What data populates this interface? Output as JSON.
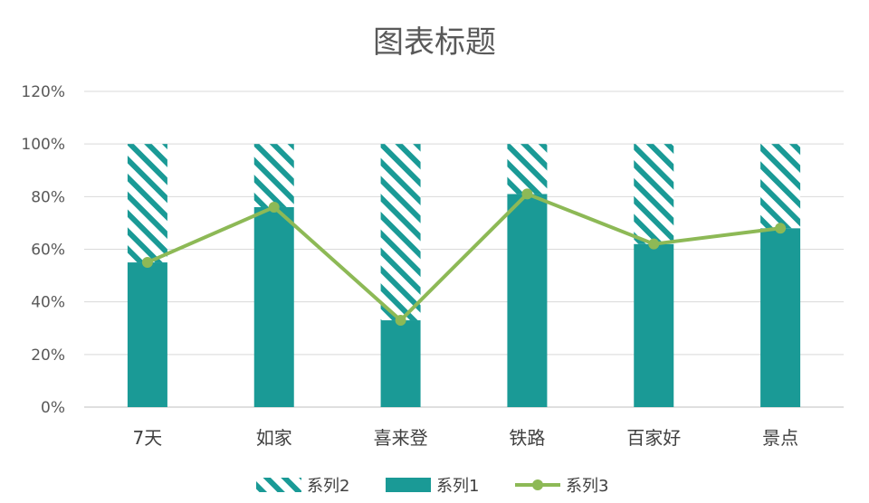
{
  "chart_data": {
    "type": "bar",
    "title": "图表标题",
    "xlabel": "",
    "ylabel": "",
    "categories": [
      "7天",
      "如家",
      "喜来登",
      "铁路",
      "百家好",
      "景点"
    ],
    "ylim": [
      0,
      1.2
    ],
    "yticks": [
      "0%",
      "20%",
      "40%",
      "60%",
      "80%",
      "100%",
      "120%"
    ],
    "grid": true,
    "legend_position": "bottom",
    "series": [
      {
        "name": "系列2",
        "kind": "stacked-bar",
        "pattern": "diagonal-hatch",
        "color": "#1a9a96",
        "values": [
          0.45,
          0.24,
          0.67,
          0.19,
          0.38,
          0.32
        ]
      },
      {
        "name": "系列1",
        "kind": "stacked-bar",
        "pattern": "solid",
        "color": "#1a9a96",
        "values": [
          0.55,
          0.76,
          0.33,
          0.81,
          0.62,
          0.68
        ]
      },
      {
        "name": "系列3",
        "kind": "line",
        "color": "#8db956",
        "values": [
          0.55,
          0.76,
          0.33,
          0.81,
          0.62,
          0.68
        ]
      }
    ],
    "legend_order": [
      "系列2",
      "系列1",
      "系列3"
    ]
  }
}
